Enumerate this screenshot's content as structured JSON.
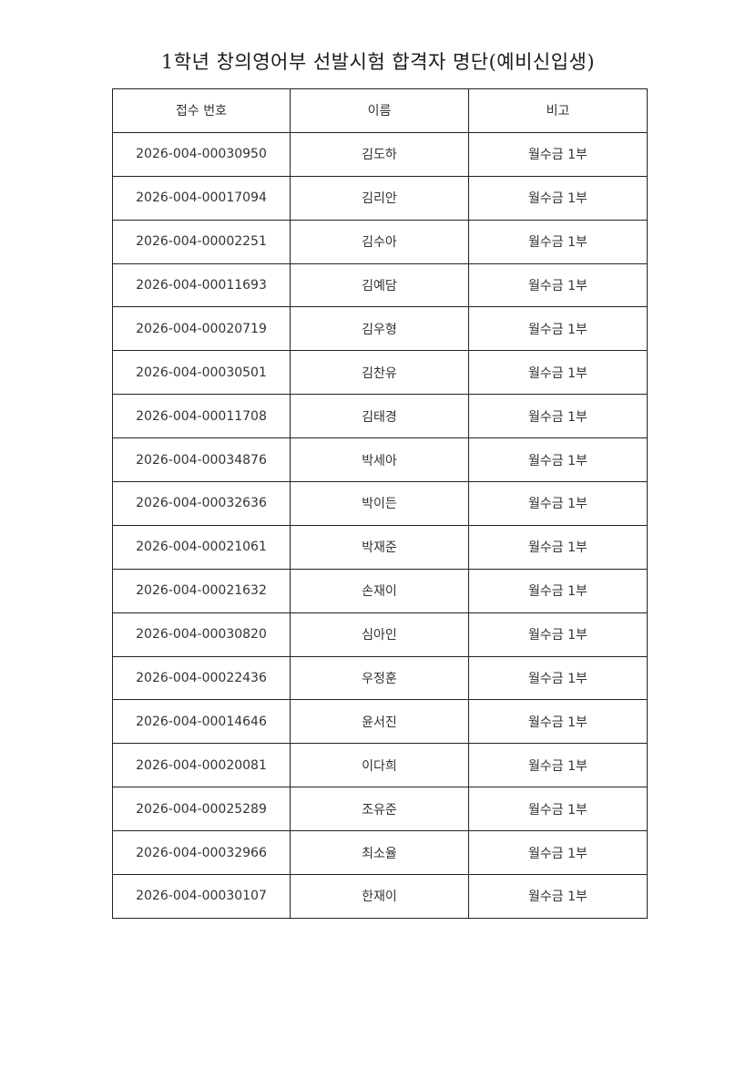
{
  "title": "1학년 창의영어부 선발시험 합격자 명단(예비신입생)",
  "headers": [
    "접수 번호",
    "이름",
    "비고"
  ],
  "rows": [
    [
      "2026-004-00030950",
      "김도하",
      "월수금 1부"
    ],
    [
      "2026-004-00017094",
      "김리안",
      "월수금 1부"
    ],
    [
      "2026-004-00002251",
      "김수아",
      "월수금 1부"
    ],
    [
      "2026-004-00011693",
      "김예담",
      "월수금 1부"
    ],
    [
      "2026-004-00020719",
      "김우형",
      "월수금 1부"
    ],
    [
      "2026-004-00030501",
      "김찬유",
      "월수금 1부"
    ],
    [
      "2026-004-00011708",
      "김태경",
      "월수금 1부"
    ],
    [
      "2026-004-00034876",
      "박세아",
      "월수금 1부"
    ],
    [
      "2026-004-00032636",
      "박이든",
      "월수금 1부"
    ],
    [
      "2026-004-00021061",
      "박재준",
      "월수금 1부"
    ],
    [
      "2026-004-00021632",
      "손재이",
      "월수금 1부"
    ],
    [
      "2026-004-00030820",
      "심아인",
      "월수금 1부"
    ],
    [
      "2026-004-00022436",
      "우정훈",
      "월수금 1부"
    ],
    [
      "2026-004-00014646",
      "윤서진",
      "월수금 1부"
    ],
    [
      "2026-004-00020081",
      "이다희",
      "월수금 1부"
    ],
    [
      "2026-004-00025289",
      "조유준",
      "월수금 1부"
    ],
    [
      "2026-004-00032966",
      "최소율",
      "월수금 1부"
    ],
    [
      "2026-004-00030107",
      "한재이",
      "월수금 1부"
    ]
  ]
}
